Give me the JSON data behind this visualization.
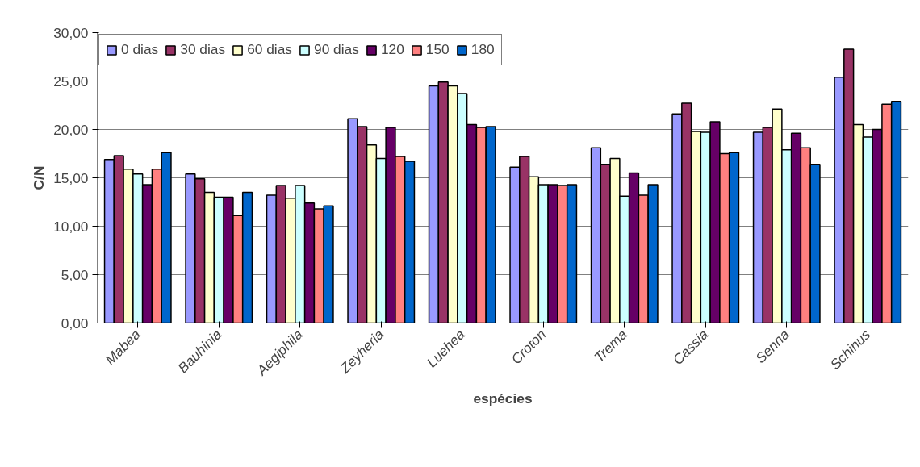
{
  "chart_data": {
    "type": "bar",
    "xlabel": "espécies",
    "ylabel": "C/N",
    "categories": [
      "Mabea",
      "Bauhinia",
      "Aegiphila",
      "Zeyheria",
      "Luehea",
      "Croton",
      "Trema",
      "Cassia",
      "Senna",
      "Schinus"
    ],
    "series": [
      {
        "name": "0 dias",
        "color": "#9999ff",
        "values": [
          16.9,
          15.4,
          13.2,
          21.1,
          24.5,
          16.1,
          18.1,
          21.6,
          19.7,
          25.4
        ]
      },
      {
        "name": "30 dias",
        "color": "#993366",
        "values": [
          17.3,
          14.9,
          14.2,
          20.3,
          24.9,
          17.2,
          16.4,
          22.7,
          20.2,
          28.3
        ]
      },
      {
        "name": "60 dias",
        "color": "#ffffcc",
        "values": [
          15.9,
          13.5,
          12.9,
          18.4,
          24.5,
          15.1,
          17.0,
          19.8,
          22.1,
          20.5
        ]
      },
      {
        "name": "90 dias",
        "color": "#ccffff",
        "values": [
          15.4,
          13.0,
          14.2,
          17.0,
          23.7,
          14.3,
          13.1,
          19.7,
          17.9,
          19.2
        ]
      },
      {
        "name": "120",
        "color": "#660066",
        "values": [
          14.3,
          13.0,
          12.4,
          20.2,
          20.5,
          14.3,
          15.5,
          20.8,
          19.6,
          20.0
        ]
      },
      {
        "name": "150",
        "color": "#ff8080",
        "values": [
          15.9,
          11.1,
          11.8,
          17.2,
          20.2,
          14.2,
          13.2,
          17.5,
          18.1,
          22.6
        ]
      },
      {
        "name": "180",
        "color": "#0066cc",
        "values": [
          17.6,
          13.5,
          12.1,
          16.7,
          20.3,
          14.3,
          14.3,
          17.6,
          16.4,
          22.9
        ]
      }
    ],
    "ylim": [
      0,
      30
    ],
    "yticks": [
      {
        "value": 0,
        "label": "0,00"
      },
      {
        "value": 5,
        "label": "5,00"
      },
      {
        "value": 10,
        "label": "10,00"
      },
      {
        "value": 15,
        "label": "15,00"
      },
      {
        "value": 20,
        "label": "20,00"
      },
      {
        "value": 25,
        "label": "25,00"
      },
      {
        "value": 30,
        "label": "30,00"
      }
    ],
    "grid": "y",
    "legend": "top"
  }
}
